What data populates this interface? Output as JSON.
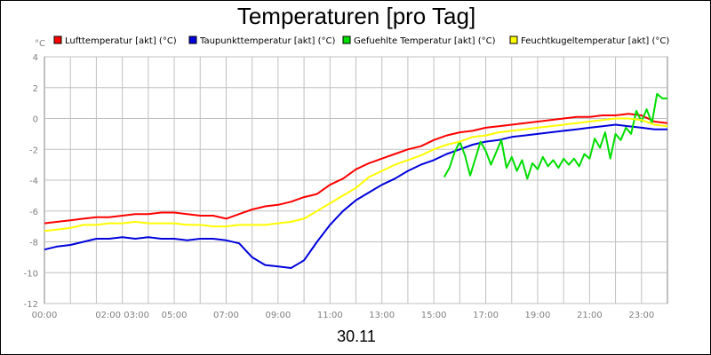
{
  "chart_data": {
    "type": "line",
    "title": "Temperaturen [pro Tag]",
    "xlabel": "30.11",
    "ylabel": "°C",
    "ylim": [
      -12,
      4
    ],
    "yticks": [
      4,
      2,
      0,
      -2,
      -4,
      -6,
      -8,
      -10,
      -12
    ],
    "xlim": [
      0,
      24
    ],
    "xtick_labels": [
      "00:00",
      "02:00 03:00",
      "05:00",
      "07:00",
      "09:00",
      "11:00",
      "13:00",
      "15:00",
      "17:00",
      "19:00",
      "21:00",
      "23:00"
    ],
    "xtick_positions": [
      0,
      3,
      5,
      7,
      9,
      11,
      13,
      15,
      17,
      19,
      21,
      23
    ],
    "grid": true,
    "legend_position": "top",
    "series": [
      {
        "name": "Lufttemperatur [akt] (°C)",
        "color": "#ff0000",
        "points": [
          [
            0,
            -6.8
          ],
          [
            0.5,
            -6.7
          ],
          [
            1,
            -6.6
          ],
          [
            1.5,
            -6.5
          ],
          [
            2,
            -6.4
          ],
          [
            2.5,
            -6.4
          ],
          [
            3,
            -6.3
          ],
          [
            3.5,
            -6.2
          ],
          [
            4,
            -6.2
          ],
          [
            4.5,
            -6.1
          ],
          [
            5,
            -6.1
          ],
          [
            5.5,
            -6.2
          ],
          [
            6,
            -6.3
          ],
          [
            6.5,
            -6.3
          ],
          [
            7,
            -6.5
          ],
          [
            7.5,
            -6.2
          ],
          [
            8,
            -5.9
          ],
          [
            8.5,
            -5.7
          ],
          [
            9,
            -5.6
          ],
          [
            9.5,
            -5.4
          ],
          [
            10,
            -5.1
          ],
          [
            10.5,
            -4.9
          ],
          [
            11,
            -4.3
          ],
          [
            11.5,
            -3.9
          ],
          [
            12,
            -3.3
          ],
          [
            12.5,
            -2.9
          ],
          [
            13,
            -2.6
          ],
          [
            13.5,
            -2.3
          ],
          [
            14,
            -2.0
          ],
          [
            14.5,
            -1.8
          ],
          [
            15,
            -1.4
          ],
          [
            15.5,
            -1.1
          ],
          [
            16,
            -0.9
          ],
          [
            16.5,
            -0.8
          ],
          [
            17,
            -0.6
          ],
          [
            17.5,
            -0.5
          ],
          [
            18,
            -0.4
          ],
          [
            18.5,
            -0.3
          ],
          [
            19,
            -0.2
          ],
          [
            19.5,
            -0.1
          ],
          [
            20,
            0.0
          ],
          [
            20.5,
            0.1
          ],
          [
            21,
            0.1
          ],
          [
            21.5,
            0.2
          ],
          [
            22,
            0.2
          ],
          [
            22.5,
            0.3
          ],
          [
            23,
            0.2
          ],
          [
            23.5,
            -0.2
          ],
          [
            24,
            -0.3
          ]
        ]
      },
      {
        "name": "Taupunkttemperatur [akt] (°C)",
        "color": "#0000dd",
        "points": [
          [
            0,
            -8.5
          ],
          [
            0.5,
            -8.3
          ],
          [
            1,
            -8.2
          ],
          [
            1.5,
            -8.0
          ],
          [
            2,
            -7.8
          ],
          [
            2.5,
            -7.8
          ],
          [
            3,
            -7.7
          ],
          [
            3.5,
            -7.8
          ],
          [
            4,
            -7.7
          ],
          [
            4.5,
            -7.8
          ],
          [
            5,
            -7.8
          ],
          [
            5.5,
            -7.9
          ],
          [
            6,
            -7.8
          ],
          [
            6.5,
            -7.8
          ],
          [
            7,
            -7.9
          ],
          [
            7.5,
            -8.1
          ],
          [
            8,
            -9.0
          ],
          [
            8.5,
            -9.5
          ],
          [
            9,
            -9.6
          ],
          [
            9.5,
            -9.7
          ],
          [
            10,
            -9.2
          ],
          [
            10.5,
            -8.0
          ],
          [
            11,
            -6.9
          ],
          [
            11.5,
            -6.0
          ],
          [
            12,
            -5.3
          ],
          [
            12.5,
            -4.8
          ],
          [
            13,
            -4.3
          ],
          [
            13.5,
            -3.9
          ],
          [
            14,
            -3.4
          ],
          [
            14.5,
            -3.0
          ],
          [
            15,
            -2.7
          ],
          [
            15.5,
            -2.3
          ],
          [
            16,
            -2.0
          ],
          [
            16.5,
            -1.7
          ],
          [
            17,
            -1.5
          ],
          [
            17.5,
            -1.4
          ],
          [
            18,
            -1.2
          ],
          [
            18.5,
            -1.1
          ],
          [
            19,
            -1.0
          ],
          [
            19.5,
            -0.9
          ],
          [
            20,
            -0.8
          ],
          [
            20.5,
            -0.7
          ],
          [
            21,
            -0.6
          ],
          [
            21.5,
            -0.5
          ],
          [
            22,
            -0.4
          ],
          [
            22.5,
            -0.5
          ],
          [
            23,
            -0.6
          ],
          [
            23.5,
            -0.7
          ],
          [
            24,
            -0.7
          ]
        ]
      },
      {
        "name": "Gefuehlte Temperatur [akt] (°C)",
        "color": "#00dd00",
        "points": [
          [
            15.4,
            -3.8
          ],
          [
            15.6,
            -3.2
          ],
          [
            15.8,
            -2.2
          ],
          [
            16.0,
            -1.5
          ],
          [
            16.2,
            -2.4
          ],
          [
            16.4,
            -3.7
          ],
          [
            16.6,
            -2.6
          ],
          [
            16.8,
            -1.5
          ],
          [
            17.0,
            -2.1
          ],
          [
            17.2,
            -3.0
          ],
          [
            17.4,
            -2.2
          ],
          [
            17.6,
            -1.4
          ],
          [
            17.8,
            -3.2
          ],
          [
            18.0,
            -2.5
          ],
          [
            18.2,
            -3.4
          ],
          [
            18.4,
            -2.7
          ],
          [
            18.6,
            -3.9
          ],
          [
            18.8,
            -2.9
          ],
          [
            19.0,
            -3.3
          ],
          [
            19.2,
            -2.5
          ],
          [
            19.4,
            -3.1
          ],
          [
            19.6,
            -2.7
          ],
          [
            19.8,
            -3.2
          ],
          [
            20.0,
            -2.6
          ],
          [
            20.2,
            -3.0
          ],
          [
            20.4,
            -2.6
          ],
          [
            20.6,
            -3.1
          ],
          [
            20.8,
            -2.3
          ],
          [
            21.0,
            -2.6
          ],
          [
            21.2,
            -1.3
          ],
          [
            21.4,
            -1.9
          ],
          [
            21.6,
            -0.9
          ],
          [
            21.8,
            -2.6
          ],
          [
            22.0,
            -1.0
          ],
          [
            22.2,
            -1.4
          ],
          [
            22.4,
            -0.6
          ],
          [
            22.6,
            -1.0
          ],
          [
            22.8,
            0.5
          ],
          [
            23.0,
            -0.2
          ],
          [
            23.2,
            0.6
          ],
          [
            23.4,
            -0.3
          ],
          [
            23.6,
            1.6
          ],
          [
            23.8,
            1.3
          ],
          [
            24,
            1.3
          ]
        ]
      },
      {
        "name": "Feuchtkugeltemperatur [akt] (°C)",
        "color": "#ffff00",
        "points": [
          [
            0,
            -7.3
          ],
          [
            0.5,
            -7.2
          ],
          [
            1,
            -7.1
          ],
          [
            1.5,
            -6.9
          ],
          [
            2,
            -6.9
          ],
          [
            2.5,
            -6.8
          ],
          [
            3,
            -6.8
          ],
          [
            3.5,
            -6.7
          ],
          [
            4,
            -6.8
          ],
          [
            4.5,
            -6.8
          ],
          [
            5,
            -6.8
          ],
          [
            5.5,
            -6.9
          ],
          [
            6,
            -6.9
          ],
          [
            6.5,
            -7.0
          ],
          [
            7,
            -7.0
          ],
          [
            7.5,
            -6.9
          ],
          [
            8,
            -6.9
          ],
          [
            8.5,
            -6.9
          ],
          [
            9,
            -6.8
          ],
          [
            9.5,
            -6.7
          ],
          [
            10,
            -6.5
          ],
          [
            10.5,
            -6.0
          ],
          [
            11,
            -5.5
          ],
          [
            11.5,
            -5.0
          ],
          [
            12,
            -4.5
          ],
          [
            12.5,
            -3.8
          ],
          [
            13,
            -3.4
          ],
          [
            13.5,
            -3.0
          ],
          [
            14,
            -2.7
          ],
          [
            14.5,
            -2.4
          ],
          [
            15,
            -2.0
          ],
          [
            15.5,
            -1.7
          ],
          [
            16,
            -1.5
          ],
          [
            16.5,
            -1.2
          ],
          [
            17,
            -1.1
          ],
          [
            17.5,
            -0.9
          ],
          [
            18,
            -0.8
          ],
          [
            18.5,
            -0.7
          ],
          [
            19,
            -0.6
          ],
          [
            19.5,
            -0.5
          ],
          [
            20,
            -0.4
          ],
          [
            20.5,
            -0.3
          ],
          [
            21,
            -0.2
          ],
          [
            21.5,
            -0.1
          ],
          [
            22,
            0.0
          ],
          [
            22.5,
            0.0
          ],
          [
            23,
            -0.1
          ],
          [
            23.5,
            -0.4
          ],
          [
            24,
            -0.5
          ]
        ]
      }
    ]
  }
}
